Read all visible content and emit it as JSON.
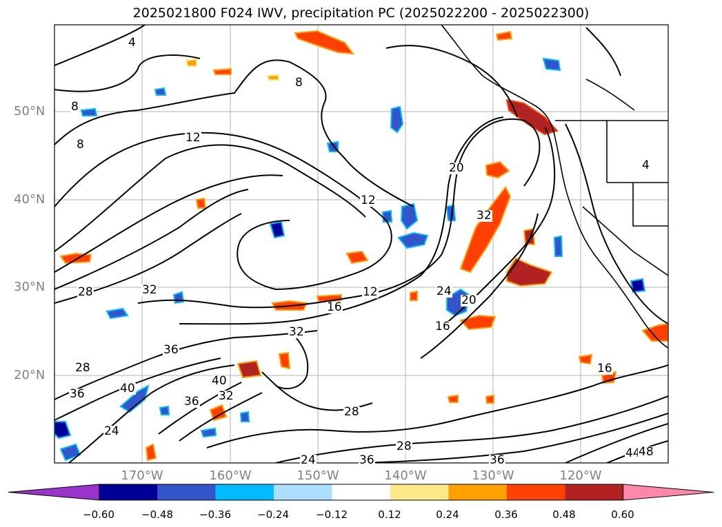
{
  "title": "2025021800 F024 IWV, precipitation PC (2025022200 - 2025022300)",
  "lat_labels": [
    "50°N",
    "40°N",
    "30°N",
    "20°N"
  ],
  "lon_labels": [
    "170°W",
    "160°W",
    "150°W",
    "140°W",
    "130°W",
    "120°W"
  ],
  "colorbar": {
    "ticks": [
      "−0.60",
      "−0.48",
      "−0.36",
      "−0.24",
      "−0.12",
      "0.12",
      "0.24",
      "0.36",
      "0.48",
      "0.60"
    ],
    "colors": [
      "#9933cc",
      "#000099",
      "#3355cc",
      "#00bbff",
      "#aaddff",
      "#ffffff",
      "#ffe88a",
      "#ffa000",
      "#ff4000",
      "#b22222",
      "#ff88aa"
    ]
  },
  "contour_labels": [
    "4",
    "8",
    "8",
    "12",
    "12",
    "12",
    "16",
    "16",
    "16",
    "20",
    "20",
    "24",
    "24",
    "24",
    "28",
    "28",
    "28",
    "28",
    "32",
    "32",
    "32",
    "32",
    "36",
    "36",
    "36",
    "36",
    "36",
    "40",
    "40",
    "44",
    "48",
    "4",
    "8"
  ]
}
